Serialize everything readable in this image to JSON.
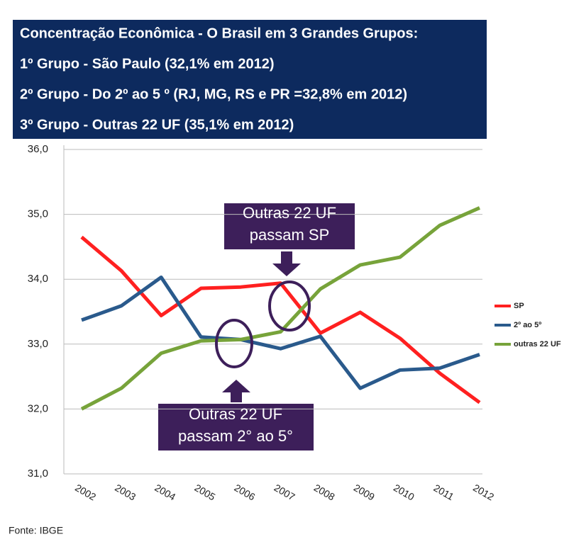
{
  "chart_data": {
    "type": "line",
    "header": [
      "Concentração Econômica - O Brasil em 3 Grandes Grupos:",
      "1º Grupo - São Paulo (32,1% em 2012)",
      "2º Grupo - Do 2º ao 5 º (RJ, MG, RS e PR =32,8% em 2012)",
      "3º Grupo - Outras 22 UF (35,1% em 2012)"
    ],
    "categories": [
      "2002",
      "2003",
      "2004",
      "2005",
      "2006",
      "2007",
      "2008",
      "2009",
      "2010",
      "2011",
      "2012"
    ],
    "series": [
      {
        "name": "SP",
        "color": "#ff2020",
        "values": [
          34.65,
          34.13,
          33.44,
          33.86,
          33.88,
          33.94,
          33.17,
          33.49,
          33.09,
          32.55,
          32.1
        ]
      },
      {
        "name": "2º ao 5º",
        "color": "#2a5a8c",
        "values": [
          33.37,
          33.59,
          34.03,
          33.11,
          33.07,
          32.93,
          33.12,
          32.32,
          32.6,
          32.63,
          32.84
        ]
      },
      {
        "name": "outras 22 UF",
        "color": "#77a33a",
        "values": [
          32.0,
          32.32,
          32.86,
          33.05,
          33.07,
          33.19,
          33.85,
          34.22,
          34.34,
          34.83,
          35.1
        ]
      }
    ],
    "ylim": [
      31,
      36
    ],
    "yticks": [
      {
        "value": 31,
        "label": "31,0"
      },
      {
        "value": 32,
        "label": "32,0"
      },
      {
        "value": 33,
        "label": "33,0"
      },
      {
        "value": 34,
        "label": "34,0"
      },
      {
        "value": 35,
        "label": "35,0"
      },
      {
        "value": 36,
        "label": "36,0"
      }
    ],
    "grid": true,
    "annotations": [
      [
        "Outras 22 UF",
        "passam SP"
      ],
      [
        "Outras 22 UF",
        "passam 2° ao 5°"
      ]
    ],
    "source": "Fonte: IBGE"
  }
}
